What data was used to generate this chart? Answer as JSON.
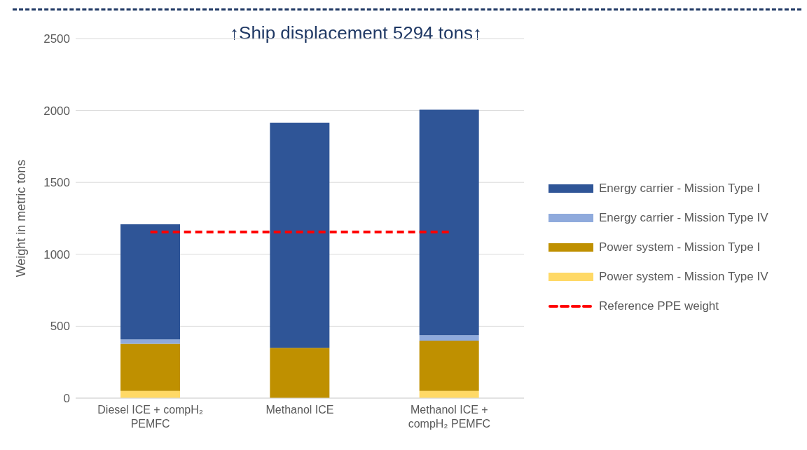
{
  "chart_data": {
    "type": "bar",
    "stacked": true,
    "ylabel": "Weight in metric tons",
    "annotations": [
      "↑Ship displacement 5294 tons↑"
    ],
    "categories": [
      "Diesel ICE + compH₂ PEMFC",
      "Methanol ICE",
      "Methanol ICE + compH₂ PEMFC"
    ],
    "series": [
      {
        "name": "Power system - Mission Type IV",
        "color": "#ffd966",
        "values": [
          50,
          0,
          50
        ]
      },
      {
        "name": "Power system - Mission Type I",
        "color": "#bf9000",
        "values": [
          328,
          350,
          350
        ]
      },
      {
        "name": "Energy carrier - Mission Type IV",
        "color": "#8faadc",
        "values": [
          30,
          0,
          37
        ]
      },
      {
        "name": "Energy carrier - Mission Type I",
        "color": "#2f5597",
        "values": [
          800,
          1565,
          1568
        ]
      }
    ],
    "ref_lines": [
      {
        "axis": "y",
        "value": 1155,
        "label": "Reference PPE weight",
        "color": "#ff0000",
        "line_style": "dashed"
      }
    ],
    "ylim": [
      0,
      2500
    ],
    "yticks": [
      0,
      500,
      1000,
      1500,
      2000,
      2500
    ],
    "grid": "y",
    "legend": "right"
  }
}
